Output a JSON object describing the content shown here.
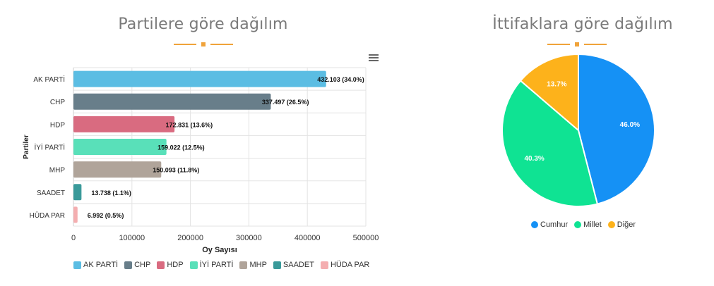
{
  "sections": {
    "left_title": "Partilere göre dağılım",
    "right_title": "İttifaklara göre dağılım"
  },
  "menu": {
    "icon": "hamburger-menu-icon"
  },
  "accent_color": "#f0a33a",
  "chart_data": [
    {
      "type": "bar",
      "orientation": "horizontal",
      "title": "Partilere göre dağılım",
      "xlabel": "Oy Sayısı",
      "ylabel": "Partiler",
      "xlim": [
        0,
        500000
      ],
      "x_ticks": [
        "0",
        "100000",
        "200000",
        "300000",
        "400000",
        "500000"
      ],
      "grid": true,
      "legend_position": "bottom",
      "categories": [
        "AK PARTİ",
        "CHP",
        "HDP",
        "İYİ PARTİ",
        "MHP",
        "SAADET",
        "HÜDA PAR"
      ],
      "values": [
        432103,
        337497,
        172831,
        159022,
        150093,
        13738,
        6992
      ],
      "data_labels": [
        "432.103 (34.0%)",
        "337.497 (26.5%)",
        "172.831 (13.6%)",
        "159.022 (12.5%)",
        "150.093 (11.8%)",
        "13.738 (1.1%)",
        "6.992 (0.5%)"
      ],
      "colors": [
        "#5bbde3",
        "#687e8a",
        "#d96b80",
        "#59e0b9",
        "#b0a49a",
        "#3a9a9a",
        "#f4aeb0"
      ]
    },
    {
      "type": "pie",
      "title": "İttifaklara göre dağılım",
      "legend_position": "bottom",
      "labels": [
        "Cumhur",
        "Millet",
        "Diğer"
      ],
      "values": [
        46.0,
        40.3,
        13.7
      ],
      "data_labels": [
        "46.0%",
        "40.3%",
        "13.7%"
      ],
      "colors": [
        "#1591f5",
        "#0fe393",
        "#fdb21b"
      ]
    }
  ]
}
